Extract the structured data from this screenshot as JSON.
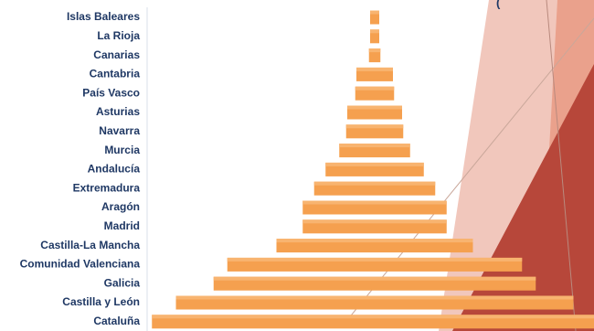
{
  "title_fragment": "(",
  "colors": {
    "bar_fill": "#f5a04f",
    "bar_top": "#f8b470",
    "label": "#1f3864",
    "axis": "#d9dfe8",
    "decor_light": "#eebdb0",
    "decor_mid": "#e9977f",
    "decor_dark": "#b7473a"
  },
  "chart_data": {
    "type": "bar",
    "orientation": "horizontal",
    "layout": "centered-pyramid",
    "categories": [
      "Islas Baleares",
      "La Rioja",
      "Canarias",
      "Cantabria",
      "País Vasco",
      "Asturias",
      "Navarra",
      "Murcia",
      "Andalucía",
      "Extremadura",
      "Aragón",
      "Madrid",
      "Castilla-La Mancha",
      "Comunidad Valenciana",
      "Galicia",
      "Castilla y León",
      "Cataluña"
    ],
    "values": [
      0.04,
      0.04,
      0.05,
      0.16,
      0.17,
      0.24,
      0.25,
      0.31,
      0.43,
      0.53,
      0.63,
      0.63,
      0.86,
      1.29,
      1.41,
      1.74,
      1.95
    ],
    "xlim": [
      0,
      2
    ],
    "legend": "none",
    "grid": false
  }
}
